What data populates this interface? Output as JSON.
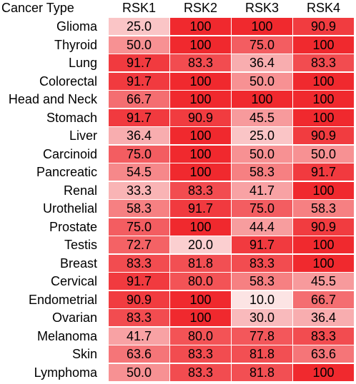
{
  "chart_data": {
    "type": "heatmap",
    "row_header": "Cancer Type",
    "columns": [
      "RSK1",
      "RSK2",
      "RSK3",
      "RSK4"
    ],
    "rows": [
      "Glioma",
      "Thyroid",
      "Lung",
      "Colorectal",
      "Head and Neck",
      "Stomach",
      "Liver",
      "Carcinoid",
      "Pancreatic",
      "Renal",
      "Urothelial",
      "Prostate",
      "Testis",
      "Breast",
      "Cervical",
      "Endometrial",
      "Ovarian",
      "Melanoma",
      "Skin",
      "Lymphoma"
    ],
    "values": [
      [
        "25.0",
        "100",
        "100",
        "90.9"
      ],
      [
        "50.0",
        "100",
        "75.0",
        "100"
      ],
      [
        "91.7",
        "83.3",
        "36.4",
        "83.3"
      ],
      [
        "91.7",
        "100",
        "50.0",
        "100"
      ],
      [
        "66.7",
        "100",
        "100",
        "100"
      ],
      [
        "91.7",
        "90.9",
        "45.5",
        "100"
      ],
      [
        "36.4",
        "100",
        "25.0",
        "90.9"
      ],
      [
        "75.0",
        "100",
        "50.0",
        "50.0"
      ],
      [
        "54.5",
        "100",
        "58.3",
        "91.7"
      ],
      [
        "33.3",
        "83.3",
        "41.7",
        "100"
      ],
      [
        "58.3",
        "91.7",
        "75.0",
        "58.3"
      ],
      [
        "75.0",
        "100",
        "44.4",
        "90.9"
      ],
      [
        "72.7",
        "20.0",
        "91.7",
        "100"
      ],
      [
        "83.3",
        "81.8",
        "83.3",
        "100"
      ],
      [
        "91.7",
        "80.0",
        "58.3",
        "45.5"
      ],
      [
        "90.9",
        "100",
        "10.0",
        "66.7"
      ],
      [
        "83.3",
        "100",
        "30.0",
        "36.4"
      ],
      [
        "41.7",
        "80.0",
        "77.8",
        "83.3"
      ],
      [
        "63.6",
        "83.3",
        "81.8",
        "63.6"
      ],
      [
        "50.0",
        "83.3",
        "81.8",
        "100"
      ]
    ],
    "value_range": [
      10,
      100
    ],
    "color_low": "#fce4e4",
    "color_high": "#f0292e",
    "grid": false,
    "legend": "none"
  }
}
